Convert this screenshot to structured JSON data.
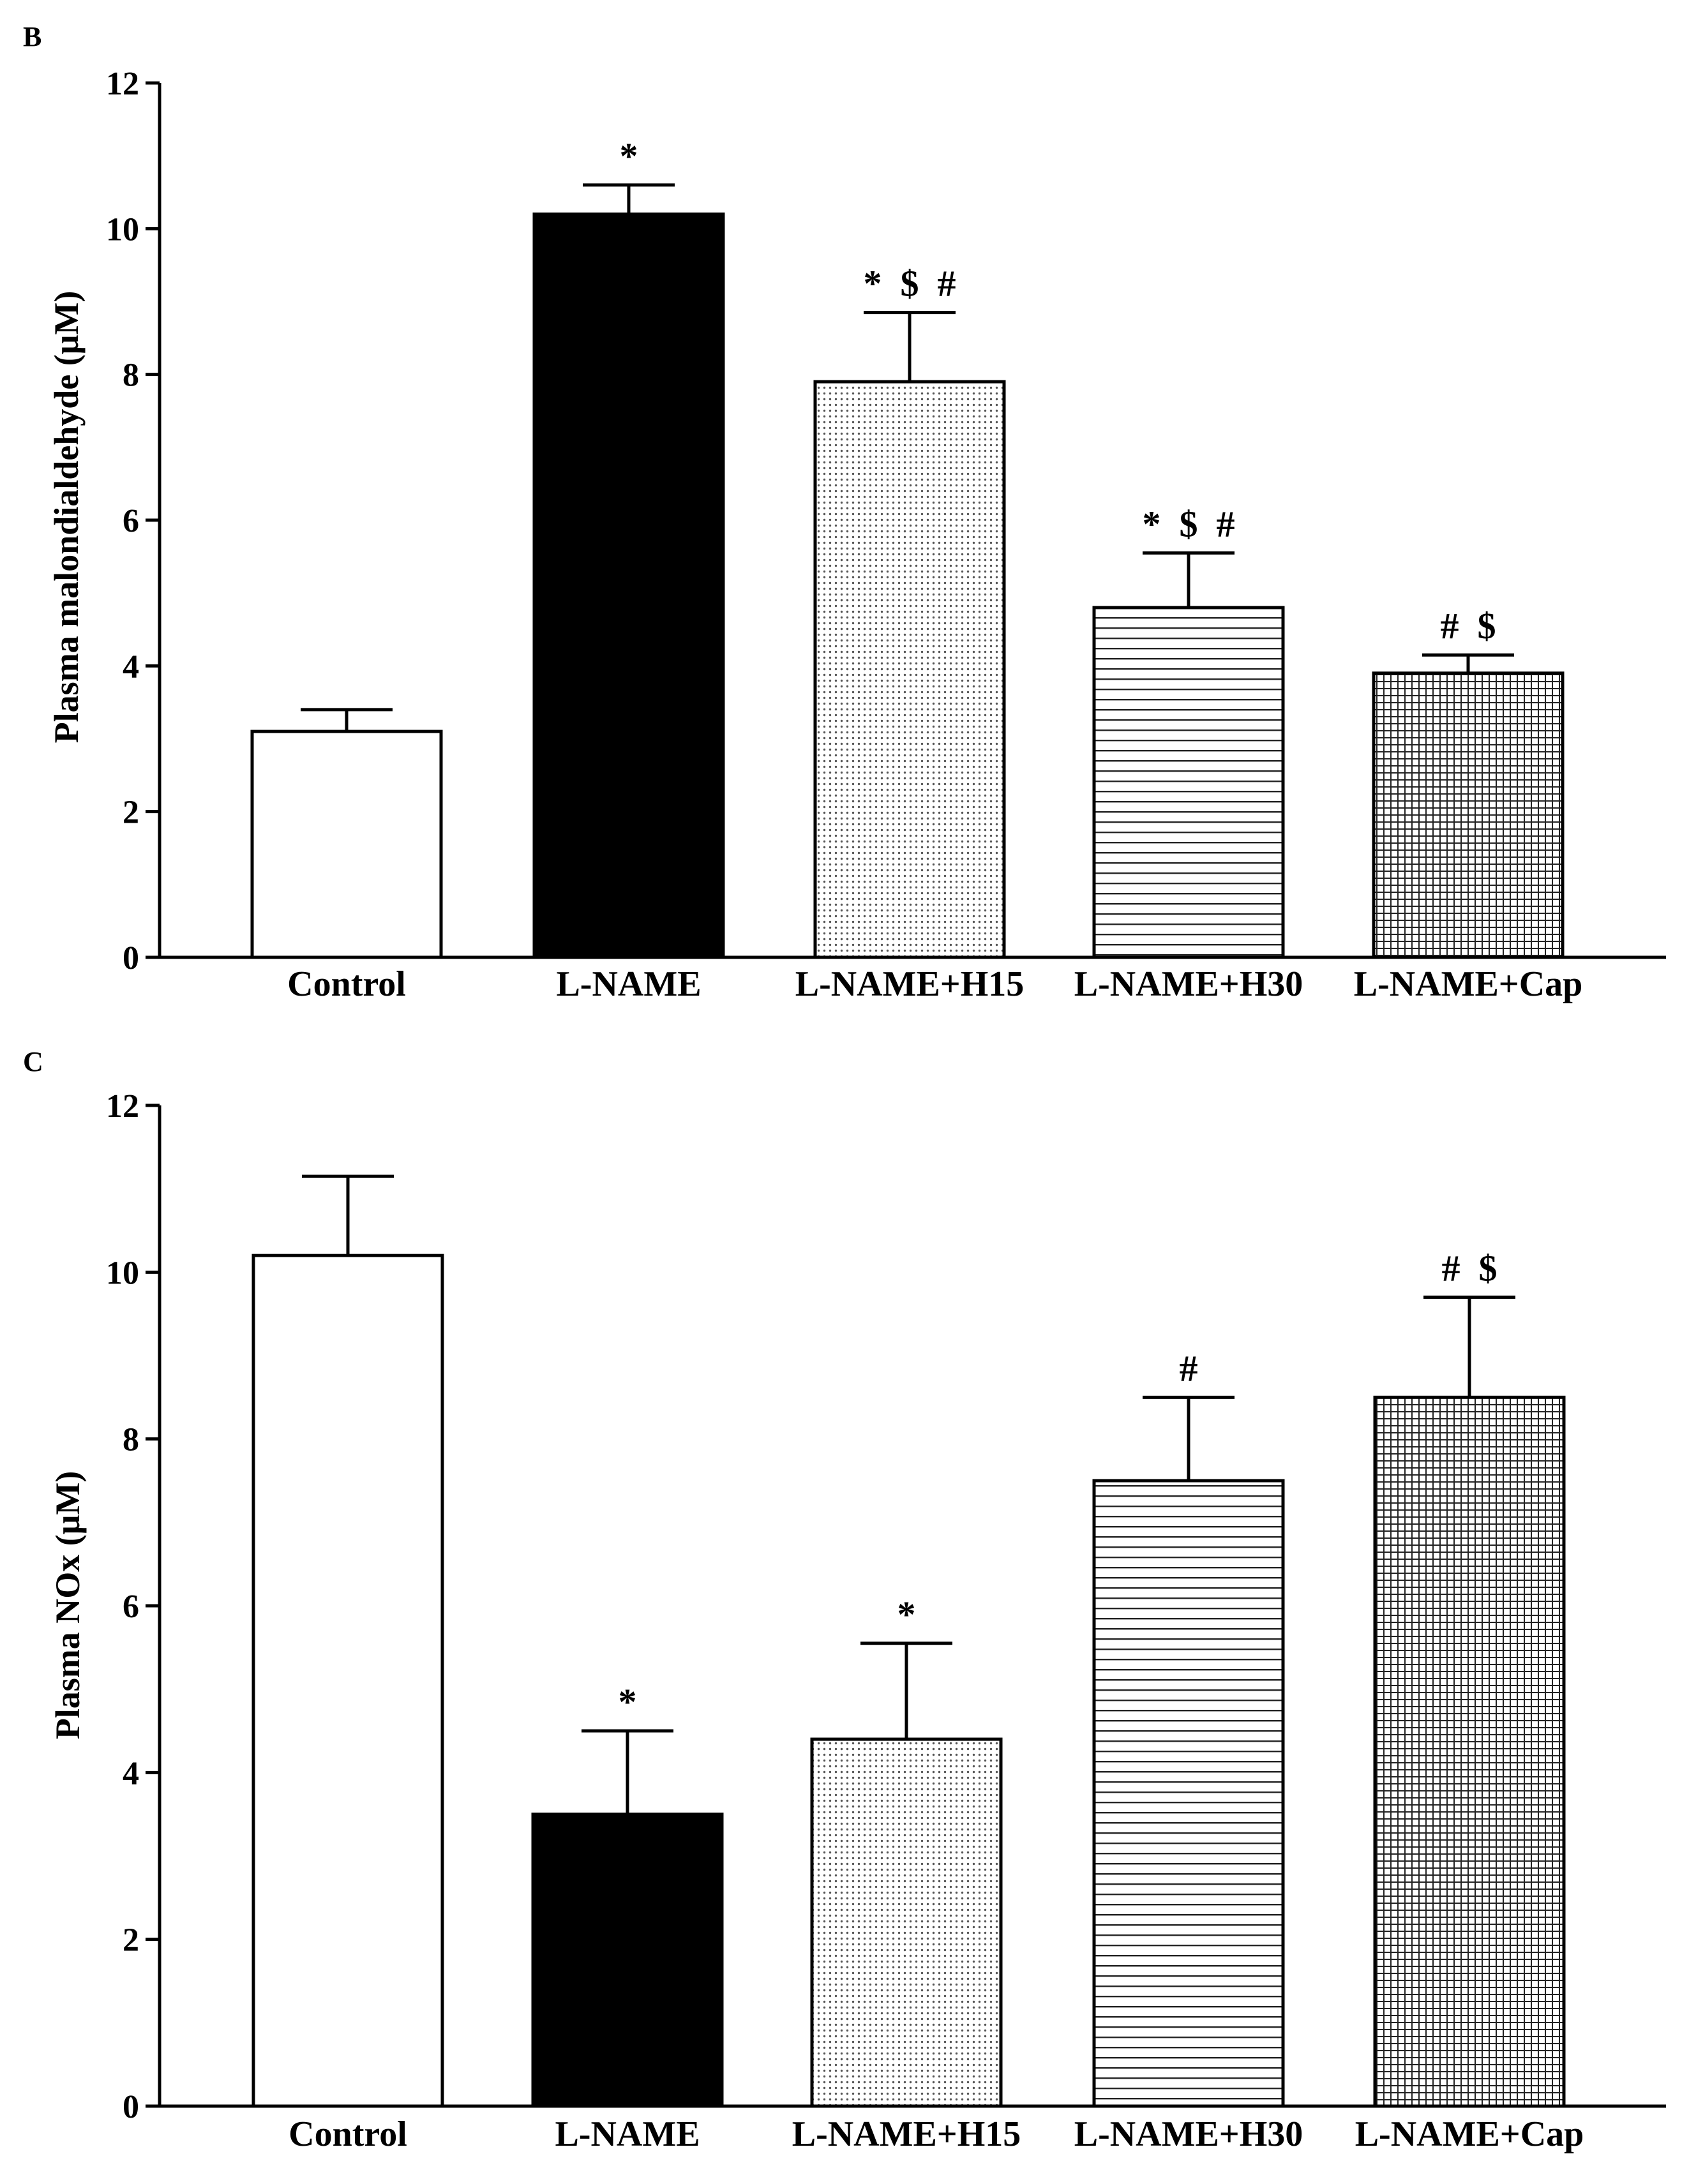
{
  "chart_data": [
    {
      "panel": "B",
      "type": "bar",
      "title": "",
      "xlabel": "",
      "ylabel": "Plasma malondialdehyde (μM)",
      "ylim": [
        0,
        12
      ],
      "yticks": [
        0,
        2,
        4,
        6,
        8,
        10,
        12
      ],
      "grid": false,
      "categories": [
        "Control",
        "L-NAME",
        "L-NAME+H15",
        "L-NAME+H30",
        "L-NAME+Cap"
      ],
      "values": [
        3.1,
        10.2,
        7.9,
        4.8,
        3.9
      ],
      "errors": [
        0.3,
        0.4,
        0.95,
        0.75,
        0.25
      ],
      "fills": [
        "white",
        "black",
        "dots",
        "hlines",
        "grid"
      ],
      "annotations": [
        "",
        "*",
        "* $ #",
        "* $ #",
        "# $"
      ]
    },
    {
      "panel": "C",
      "type": "bar",
      "title": "",
      "xlabel": "",
      "ylabel": "Plasma NOx (μM)",
      "ylim": [
        0,
        12
      ],
      "yticks": [
        0,
        2,
        4,
        6,
        8,
        10,
        12
      ],
      "grid": false,
      "categories": [
        "Control",
        "L-NAME",
        "L-NAME+H15",
        "L-NAME+H30",
        "L-NAME+Cap"
      ],
      "values": [
        10.2,
        3.5,
        4.4,
        7.5,
        8.5
      ],
      "errors": [
        0.95,
        1.0,
        1.15,
        1.0,
        1.2
      ],
      "fills": [
        "white",
        "black",
        "dots",
        "hlines",
        "grid"
      ],
      "annotations": [
        "",
        "*",
        "*",
        "#",
        "# $"
      ]
    }
  ]
}
